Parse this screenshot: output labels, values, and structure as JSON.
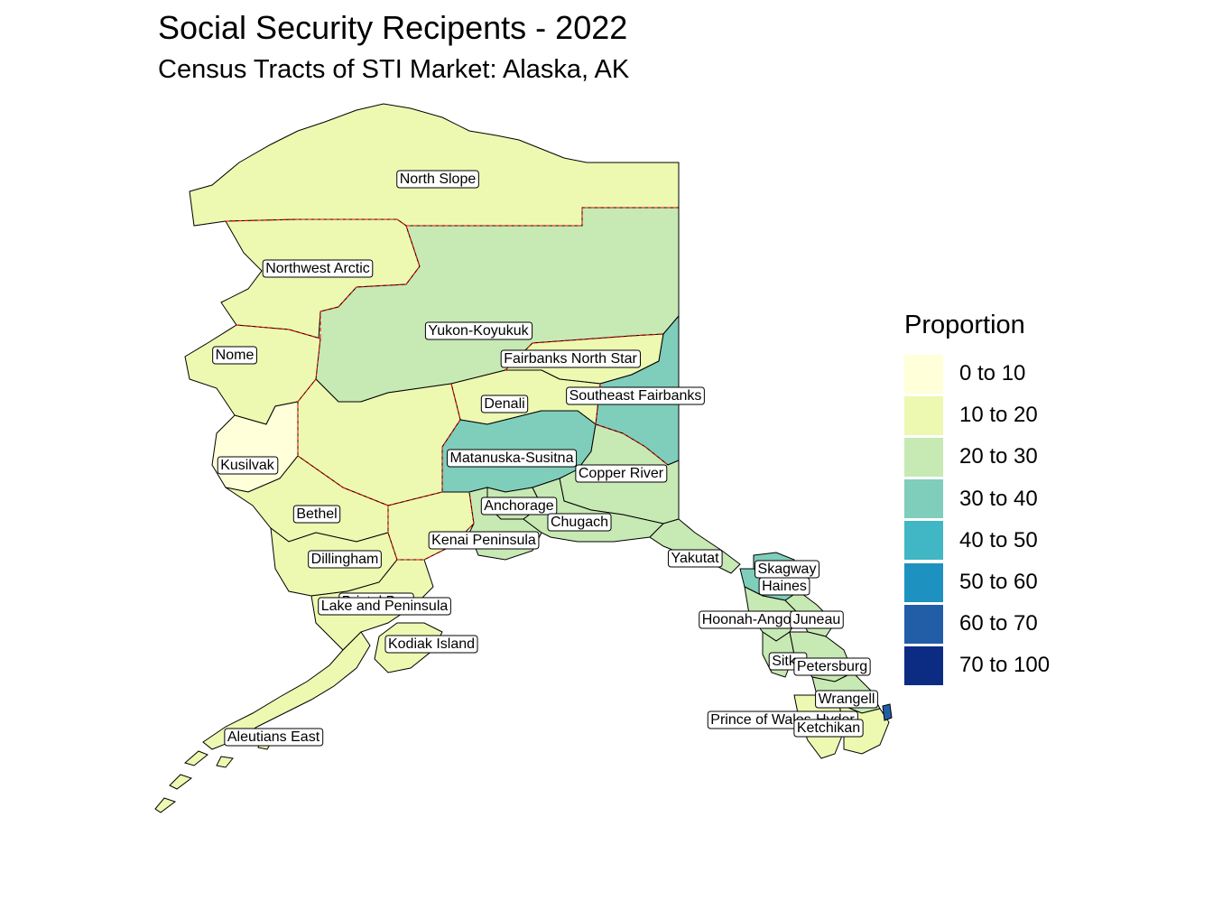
{
  "title": "Social Security Recipents - 2022",
  "subtitle": "Census Tracts of STI Market: Alaska, AK",
  "legend": {
    "title": "Proportion",
    "items": [
      {
        "label": "0 to 10",
        "color": "#ffffd9"
      },
      {
        "label": "10 to 20",
        "color": "#edf8b1"
      },
      {
        "label": "20 to 30",
        "color": "#c7e9b4"
      },
      {
        "label": "30 to 40",
        "color": "#7fcdbb"
      },
      {
        "label": "40 to 50",
        "color": "#41b6c4"
      },
      {
        "label": "50 to 60",
        "color": "#1d91c0"
      },
      {
        "label": "60 to 70",
        "color": "#225ea8"
      },
      {
        "label": "70 to 100",
        "color": "#0c2c84"
      }
    ]
  },
  "regions": [
    {
      "name": "North Slope",
      "class": "10 to 20"
    },
    {
      "name": "Northwest Arctic",
      "class": "10 to 20"
    },
    {
      "name": "Yukon-Koyukuk",
      "class": "20 to 30"
    },
    {
      "name": "Nome",
      "class": "10 to 20"
    },
    {
      "name": "Fairbanks North Star",
      "class": "10 to 20"
    },
    {
      "name": "Southeast Fairbanks",
      "class": "30 to 40"
    },
    {
      "name": "Denali",
      "class": "10 to 20"
    },
    {
      "name": "Kusilvak",
      "class": "0 to 10"
    },
    {
      "name": "Matanuska-Susitna",
      "class": "30 to 40"
    },
    {
      "name": "Copper River",
      "class": "20 to 30"
    },
    {
      "name": "Bethel",
      "class": "10 to 20"
    },
    {
      "name": "Anchorage",
      "class": "20 to 30"
    },
    {
      "name": "Chugach",
      "class": "20 to 30"
    },
    {
      "name": "Kenai Peninsula",
      "class": "20 to 30"
    },
    {
      "name": "Dillingham",
      "class": "10 to 20"
    },
    {
      "name": "Yakutat",
      "class": "20 to 30"
    },
    {
      "name": "Skagway",
      "class": "30 to 40"
    },
    {
      "name": "Haines",
      "class": "30 to 40"
    },
    {
      "name": "Bristol Bay",
      "class": "10 to 20"
    },
    {
      "name": "Lake and Peninsula",
      "class": "10 to 20"
    },
    {
      "name": "Hoonah-Angoon",
      "class": "20 to 30"
    },
    {
      "name": "Juneau",
      "class": "20 to 30"
    },
    {
      "name": "Kodiak Island",
      "class": "10 to 20"
    },
    {
      "name": "Sitka",
      "class": "20 to 30"
    },
    {
      "name": "Petersburg",
      "class": "20 to 30"
    },
    {
      "name": "Wrangell",
      "class": "20 to 30"
    },
    {
      "name": "Prince of Wales-Hyder",
      "class": "10 to 20"
    },
    {
      "name": "Ketchikan Gateway",
      "class": "10 to 20"
    },
    {
      "name": "Aleutians East",
      "class": "10 to 20"
    }
  ],
  "labels": [
    {
      "text": "North Slope"
    },
    {
      "text": "Northwest Arctic"
    },
    {
      "text": "Yukon-Koyukuk"
    },
    {
      "text": "Nome"
    },
    {
      "text": "Fairbanks North Star"
    },
    {
      "text": "Southeast Fairbanks"
    },
    {
      "text": "Denali"
    },
    {
      "text": "Kusilvak"
    },
    {
      "text": "Matanuska-Susitna"
    },
    {
      "text": "Copper River"
    },
    {
      "text": "Bethel"
    },
    {
      "text": "Anchorage"
    },
    {
      "text": "Chugach"
    },
    {
      "text": "Kenai Peninsula"
    },
    {
      "text": "Dillingham"
    },
    {
      "text": "Yakutat"
    },
    {
      "text": "Skagway"
    },
    {
      "text": "Haines"
    },
    {
      "text": "Bristol Bay"
    },
    {
      "text": "Lake and Peninsula"
    },
    {
      "text": "Hoonah-Angoon"
    },
    {
      "text": "Juneau"
    },
    {
      "text": "Kodiak Island"
    },
    {
      "text": "Sitka"
    },
    {
      "text": "Petersburg"
    },
    {
      "text": "Wrangell"
    },
    {
      "text": "Prince of Wales-Hyder"
    },
    {
      "text": "Ketchikan"
    },
    {
      "text": "Aleutians East"
    }
  ]
}
